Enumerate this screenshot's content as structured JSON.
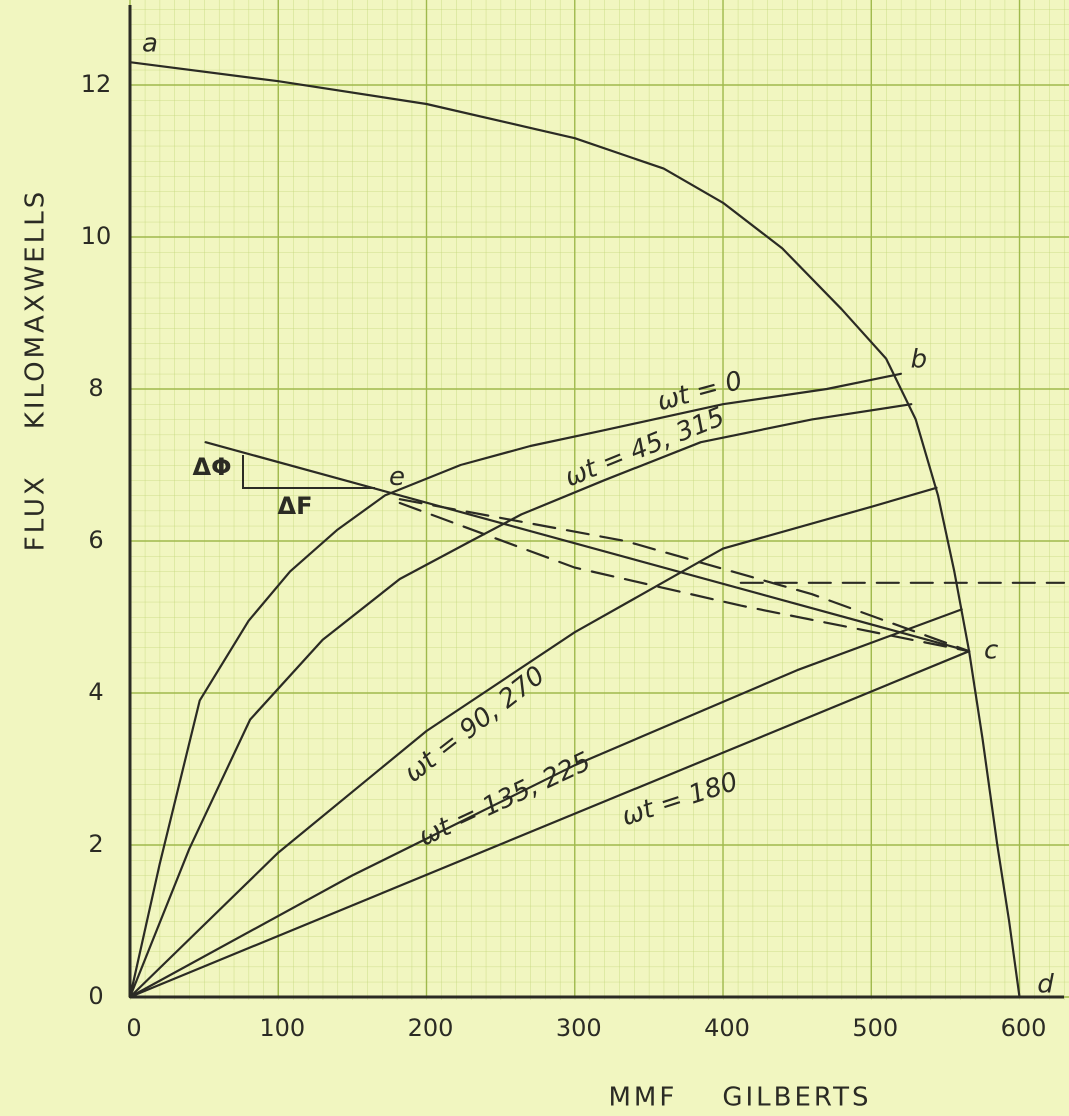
{
  "chart_data": {
    "type": "line",
    "xlabel": "MMF    GILBERTS",
    "ylabel": "FLUX    KILOMAXWELLS",
    "xlim": [
      0,
      630
    ],
    "ylim": [
      0,
      13
    ],
    "xticks": [
      0,
      100,
      200,
      300,
      400,
      500,
      600
    ],
    "yticks": [
      0,
      2,
      4,
      6,
      8,
      10,
      12
    ],
    "grid": true,
    "series": [
      {
        "color": "#2b2b24",
        "x": [
          0,
          100,
          200,
          300,
          360,
          400,
          440,
          480,
          510,
          530,
          545,
          556,
          566,
          575,
          585,
          593,
          600
        ],
        "values": [
          12.3,
          12.05,
          11.75,
          11.3,
          10.9,
          10.45,
          9.85,
          9.05,
          8.4,
          7.6,
          6.6,
          5.6,
          4.55,
          3.4,
          2.0,
          1.0,
          0
        ]
      },
      {
        "name": "ωt = 0",
        "color": "#2b2b24",
        "x": [
          0,
          20,
          47,
          80,
          108,
          140,
          172,
          223,
          270,
          318,
          400,
          470,
          520
        ],
        "values": [
          0,
          1.75,
          3.9,
          4.95,
          5.6,
          6.15,
          6.6,
          7.0,
          7.25,
          7.45,
          7.8,
          8.0,
          8.2
        ]
      },
      {
        "name": "ωt = 45, 315",
        "color": "#2b2b24",
        "x": [
          0,
          40,
          81,
          130,
          182,
          230,
          264,
          320,
          385,
          460,
          527
        ],
        "values": [
          0,
          1.95,
          3.65,
          4.7,
          5.5,
          6.0,
          6.35,
          6.8,
          7.3,
          7.6,
          7.8
        ]
      },
      {
        "name": "ωt = 90, 270",
        "color": "#2b2b24",
        "x": [
          0,
          100,
          200,
          300,
          400,
          500,
          544
        ],
        "values": [
          0,
          1.9,
          3.5,
          4.8,
          5.9,
          6.45,
          6.7
        ]
      },
      {
        "name": "ωt = 135, 225",
        "color": "#2b2b24",
        "x": [
          0,
          150,
          300,
          450,
          561
        ],
        "values": [
          0,
          1.6,
          3.05,
          4.3,
          5.1
        ]
      },
      {
        "name": "ωt = 180",
        "color": "#2b2b24",
        "x": [
          0,
          566
        ],
        "values": [
          0,
          4.55
        ]
      },
      {
        "color": "#2b2b24",
        "x": [
          51,
          566
        ],
        "values": [
          7.3,
          4.55
        ]
      },
      {
        "color": "#2b2b24",
        "dash": true,
        "x": [
          182,
          334,
          460,
          566
        ],
        "values": [
          6.55,
          6.0,
          5.3,
          4.55
        ]
      },
      {
        "color": "#2b2b24",
        "dash": true,
        "x": [
          182,
          300,
          412,
          566
        ],
        "values": [
          6.5,
          5.65,
          5.15,
          4.55
        ]
      },
      {
        "color": "#2b2b24",
        "dash": true,
        "x": [
          412,
          630
        ],
        "values": [
          5.45,
          5.45
        ]
      }
    ],
    "annotations": [
      {
        "text": "a",
        "x": 0,
        "y": 12.3
      },
      {
        "text": "b",
        "x": 520,
        "y": 8.2
      },
      {
        "text": "c",
        "x": 566,
        "y": 4.55
      },
      {
        "text": "d",
        "x": 600,
        "y": 0
      },
      {
        "text": "e",
        "x": 172,
        "y": 6.6
      },
      {
        "text": "ΔΦ"
      },
      {
        "text": "ΔF"
      }
    ]
  }
}
